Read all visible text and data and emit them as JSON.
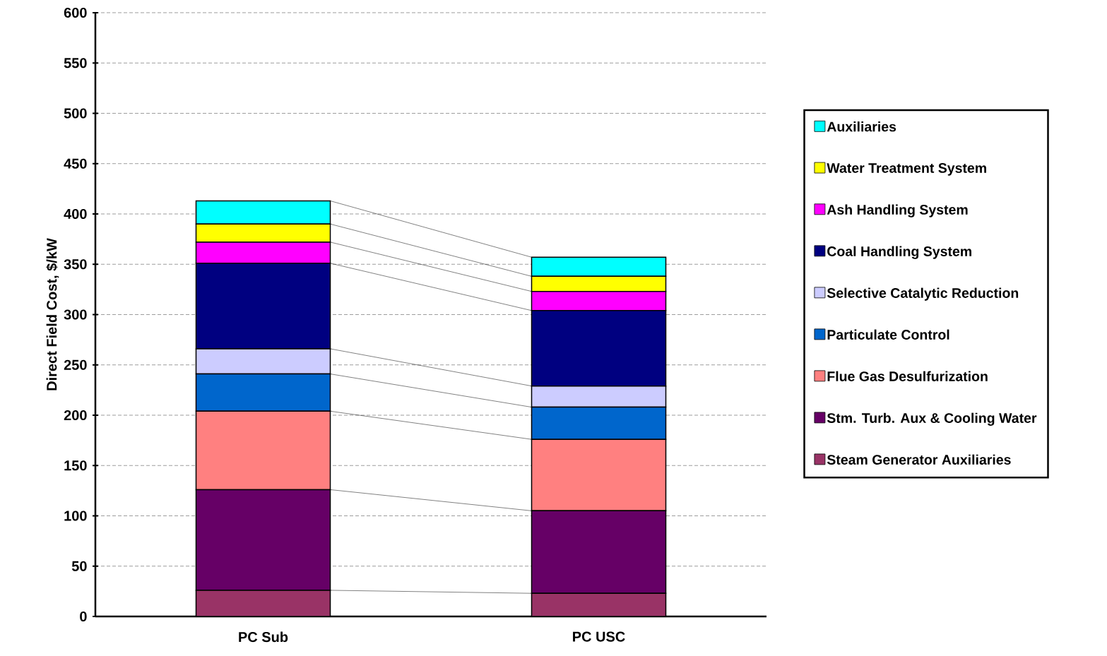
{
  "chart_data": {
    "type": "bar",
    "stacked": true,
    "ylabel": "Direct Field Cost, $/kW",
    "categories": [
      "PC Sub",
      "PC USC"
    ],
    "series": [
      {
        "name": "Steam Generator Auxiliaries",
        "color": "#993366",
        "values": [
          26,
          23
        ]
      },
      {
        "name": "Stm. Turb. Aux & Cooling Water",
        "color": "#660066",
        "values": [
          100,
          82
        ]
      },
      {
        "name": "Flue Gas Desulfurization",
        "color": "#ff8080",
        "values": [
          78,
          71
        ]
      },
      {
        "name": "Particulate Control",
        "color": "#0066cc",
        "values": [
          37,
          32
        ]
      },
      {
        "name": "Selective Catalytic Reduction",
        "color": "#ccccff",
        "values": [
          25,
          21
        ]
      },
      {
        "name": "Coal Handling System",
        "color": "#000080",
        "values": [
          85,
          75
        ]
      },
      {
        "name": "Ash Handling System",
        "color": "#ff00ff",
        "values": [
          21,
          19
        ]
      },
      {
        "name": "Water Treatment System",
        "color": "#ffff00",
        "values": [
          18,
          15
        ]
      },
      {
        "name": "Auxiliaries",
        "color": "#00ffff",
        "values": [
          23,
          19
        ]
      }
    ],
    "ylim": [
      0,
      600
    ],
    "yticks": [
      0,
      50,
      100,
      150,
      200,
      250,
      300,
      350,
      400,
      450,
      500,
      550,
      600
    ],
    "grid": "y",
    "legend": "right"
  }
}
